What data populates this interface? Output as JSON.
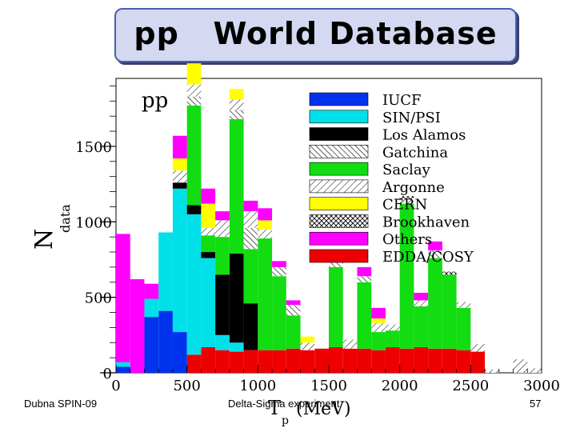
{
  "slide": {
    "title": "pp   World Database",
    "footer_left": "Dubna SPIN-09",
    "footer_center": "Delta-Sigma experiment",
    "page_number": "57"
  },
  "colors": {
    "IUCF": "#0033ee",
    "SIN/PSI": "#00e0e8",
    "Los Alamos": "#000000",
    "Gatchina": "#ffffff",
    "Saclay": "#11dd11",
    "Argonne": "#ffffff",
    "CERN": "#ffff00",
    "Brookhaven": "#ffffff",
    "Others": "#ff00ff",
    "EDDA/COSY": "#ee0000"
  },
  "chart_data": {
    "type": "bar",
    "stacked": true,
    "panel_label": "pp",
    "ylabel": "N",
    "ylabel_sub": "data",
    "xlabel": "T",
    "xlabel_sub": "p",
    "xlabel_unit": "(MeV)",
    "xlim": [
      0,
      3000
    ],
    "ylim": [
      0,
      1950
    ],
    "xticks": [
      0,
      500,
      1000,
      1500,
      2000,
      2500,
      3000
    ],
    "yticks": [
      0,
      500,
      1000,
      1500
    ],
    "bin_width": 100,
    "bins": [
      0,
      100,
      200,
      300,
      400,
      500,
      600,
      700,
      800,
      900,
      1000,
      1100,
      1200,
      1300,
      1400,
      1500,
      1600,
      1700,
      1800,
      1900,
      2000,
      2100,
      2200,
      2300,
      2400,
      2500,
      2600,
      2700,
      2800,
      2900
    ],
    "legend": [
      "IUCF",
      "SIN/PSI",
      "Los Alamos",
      "Gatchina",
      "Saclay",
      "Argonne",
      "CERN",
      "Brookhaven",
      "Others",
      "EDDA/COSY"
    ],
    "legend_position": "top-right",
    "series": [
      {
        "name": "EDDA/COSY",
        "values": [
          0,
          0,
          0,
          0,
          0,
          120,
          170,
          150,
          140,
          150,
          150,
          150,
          160,
          150,
          160,
          170,
          160,
          160,
          150,
          170,
          160,
          170,
          160,
          160,
          150,
          140,
          0,
          0,
          0,
          0
        ]
      },
      {
        "name": "IUCF",
        "values": [
          40,
          0,
          370,
          410,
          270,
          0,
          0,
          0,
          0,
          0,
          0,
          0,
          0,
          0,
          0,
          0,
          0,
          0,
          0,
          0,
          0,
          0,
          0,
          0,
          0,
          0,
          0,
          0,
          0,
          0
        ]
      },
      {
        "name": "SIN/PSI",
        "values": [
          30,
          0,
          120,
          520,
          950,
          930,
          590,
          100,
          60,
          0,
          0,
          0,
          0,
          0,
          0,
          0,
          0,
          0,
          0,
          0,
          0,
          0,
          0,
          0,
          0,
          0,
          0,
          0,
          0,
          0
        ]
      },
      {
        "name": "Los Alamos",
        "values": [
          0,
          0,
          0,
          0,
          40,
          60,
          40,
          400,
          590,
          310,
          0,
          0,
          0,
          0,
          0,
          0,
          0,
          0,
          0,
          0,
          0,
          0,
          0,
          0,
          0,
          0,
          0,
          0,
          0,
          0
        ]
      },
      {
        "name": "Saclay",
        "values": [
          0,
          0,
          0,
          0,
          0,
          660,
          110,
          250,
          890,
          360,
          740,
          490,
          220,
          0,
          0,
          530,
          0,
          440,
          120,
          110,
          960,
          270,
          600,
          490,
          280,
          0,
          0,
          0,
          0,
          0
        ]
      },
      {
        "name": "Gatchina",
        "values": [
          0,
          0,
          0,
          0,
          0,
          60,
          0,
          0,
          60,
          140,
          0,
          60,
          70,
          0,
          0,
          30,
          0,
          40,
          0,
          0,
          0,
          0,
          50,
          0,
          0,
          0,
          0,
          0,
          0,
          0
        ]
      },
      {
        "name": "Argonne",
        "values": [
          0,
          0,
          0,
          0,
          80,
          80,
          50,
          110,
          70,
          110,
          60,
          0,
          0,
          50,
          0,
          0,
          60,
          0,
          60,
          40,
          30,
          40,
          0,
          0,
          40,
          50,
          20,
          0,
          90,
          30
        ]
      },
      {
        "name": "CERN",
        "values": [
          0,
          0,
          0,
          0,
          80,
          140,
          160,
          0,
          70,
          0,
          60,
          0,
          0,
          40,
          0,
          0,
          0,
          0,
          30,
          0,
          0,
          0,
          0,
          0,
          0,
          0,
          0,
          0,
          0,
          0
        ]
      },
      {
        "name": "Brookhaven",
        "values": [
          0,
          0,
          0,
          0,
          0,
          0,
          0,
          0,
          0,
          0,
          0,
          0,
          0,
          0,
          0,
          0,
          0,
          0,
          0,
          0,
          20,
          0,
          0,
          20,
          0,
          0,
          0,
          0,
          0,
          0
        ]
      },
      {
        "name": "Others",
        "values": [
          850,
          620,
          100,
          0,
          150,
          0,
          100,
          60,
          0,
          70,
          80,
          40,
          30,
          0,
          0,
          40,
          0,
          60,
          70,
          0,
          0,
          50,
          60,
          0,
          0,
          0,
          0,
          0,
          0,
          0
        ]
      }
    ]
  }
}
